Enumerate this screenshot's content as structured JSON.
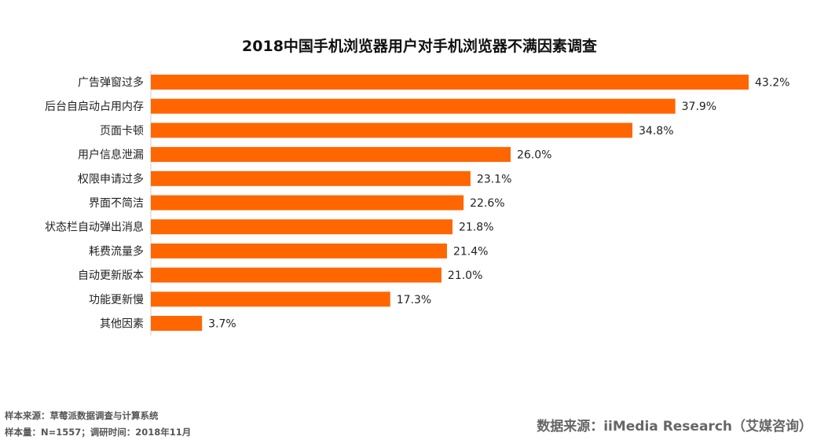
{
  "chart_data": {
    "type": "bar",
    "orientation": "horizontal",
    "title": "2018中国手机浏览器用户对手机浏览器不满因素调查",
    "categories": [
      "广告弹窗过多",
      "后台自启动占用内存",
      "页面卡顿",
      "用户信息泄漏",
      "权限申请过多",
      "界面不简洁",
      "状态栏自动弹出消息",
      "耗费流量多",
      "自动更新版本",
      "功能更新慢",
      "其他因素"
    ],
    "values": [
      43.2,
      37.9,
      34.8,
      26.0,
      23.1,
      22.6,
      21.8,
      21.4,
      21.0,
      17.3,
      3.7
    ],
    "value_labels": [
      "43.2%",
      "37.9%",
      "34.8%",
      "26.0%",
      "23.1%",
      "22.6%",
      "21.8%",
      "21.4%",
      "21.0%",
      "17.3%",
      "3.7%"
    ],
    "xlim": [
      0,
      43.2
    ],
    "grid": false,
    "bar_color": "#FF6600"
  },
  "footer": {
    "sample_source": "样本来源：草莓派数据调查与计算系统",
    "sample_size": "样本量：N=1557；调研时间：2018年11月",
    "data_source": "数据来源：iiMedia Research（艾媒咨询）"
  }
}
